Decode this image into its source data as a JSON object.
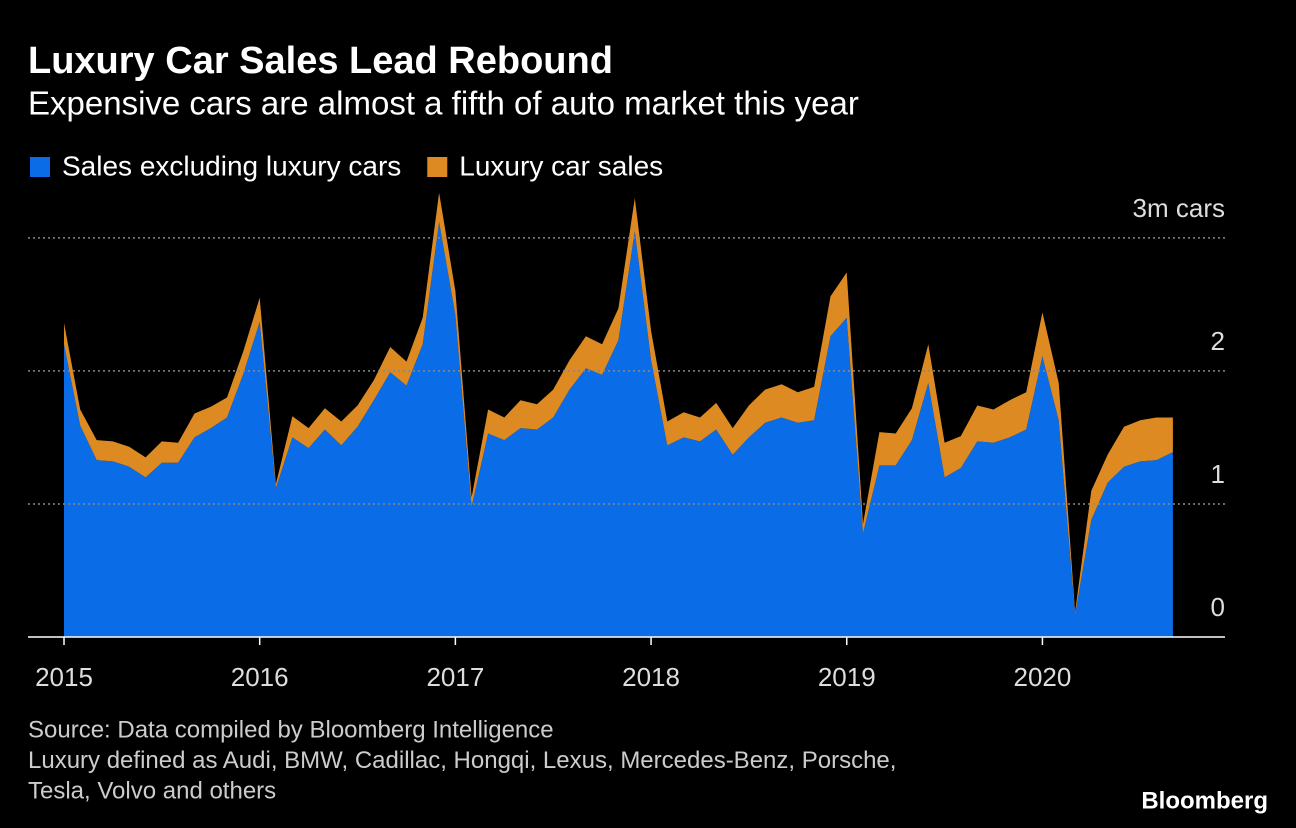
{
  "chart_data": {
    "type": "stacked_area",
    "title": "Luxury Car Sales Lead Rebound",
    "subtitle": "Expensive cars are almost a fifth of auto market this year",
    "x": [
      2015,
      2015.083,
      2015.167,
      2015.25,
      2015.333,
      2015.417,
      2015.5,
      2015.583,
      2015.667,
      2015.75,
      2015.833,
      2015.917,
      2016,
      2016.083,
      2016.167,
      2016.25,
      2016.333,
      2016.417,
      2016.5,
      2016.583,
      2016.667,
      2016.75,
      2016.833,
      2016.917,
      2017,
      2017.083,
      2017.167,
      2017.25,
      2017.333,
      2017.417,
      2017.5,
      2017.583,
      2017.667,
      2017.75,
      2017.833,
      2017.917,
      2018,
      2018.083,
      2018.167,
      2018.25,
      2018.333,
      2018.417,
      2018.5,
      2018.583,
      2018.667,
      2018.75,
      2018.833,
      2018.917,
      2019,
      2019.083,
      2019.167,
      2019.25,
      2019.333,
      2019.417,
      2019.5,
      2019.583,
      2019.667,
      2019.75,
      2019.833,
      2019.917,
      2020,
      2020.083,
      2020.167,
      2020.25,
      2020.333,
      2020.417,
      2020.5,
      2020.583,
      2020.667
    ],
    "series": [
      {
        "name": "Sales excluding luxury cars",
        "color": "#0a6ce6",
        "values": [
          2.2,
          1.59,
          1.33,
          1.32,
          1.28,
          1.2,
          1.31,
          1.31,
          1.5,
          1.57,
          1.65,
          1.98,
          2.37,
          1.12,
          1.5,
          1.42,
          1.56,
          1.44,
          1.58,
          1.78,
          1.99,
          1.89,
          2.2,
          3.12,
          2.42,
          0.98,
          1.53,
          1.48,
          1.57,
          1.56,
          1.65,
          1.86,
          2.02,
          1.97,
          2.23,
          3.05,
          2.08,
          1.44,
          1.5,
          1.47,
          1.56,
          1.37,
          1.5,
          1.61,
          1.65,
          1.61,
          1.63,
          2.26,
          2.4,
          0.78,
          1.29,
          1.29,
          1.48,
          1.91,
          1.2,
          1.27,
          1.47,
          1.46,
          1.5,
          1.56,
          2.11,
          1.63,
          0.17,
          0.88,
          1.16,
          1.28,
          1.32,
          1.33,
          1.39
        ]
      },
      {
        "name": "Luxury car sales",
        "color": "#de8a22",
        "values": [
          0.16,
          0.12,
          0.15,
          0.15,
          0.15,
          0.15,
          0.16,
          0.15,
          0.18,
          0.16,
          0.15,
          0.17,
          0.18,
          0.03,
          0.16,
          0.15,
          0.16,
          0.18,
          0.16,
          0.15,
          0.19,
          0.18,
          0.2,
          0.22,
          0.18,
          0.07,
          0.18,
          0.17,
          0.21,
          0.19,
          0.21,
          0.22,
          0.24,
          0.23,
          0.24,
          0.25,
          0.22,
          0.18,
          0.19,
          0.18,
          0.2,
          0.2,
          0.24,
          0.25,
          0.25,
          0.23,
          0.25,
          0.3,
          0.34,
          0.07,
          0.25,
          0.24,
          0.24,
          0.29,
          0.26,
          0.24,
          0.27,
          0.25,
          0.28,
          0.28,
          0.33,
          0.28,
          0.02,
          0.22,
          0.21,
          0.3,
          0.31,
          0.32,
          0.26
        ]
      }
    ],
    "xlim": [
      2014.816,
      2020.933
    ],
    "xticks": [
      2015,
      2016,
      2017,
      2018,
      2019,
      2020
    ],
    "ylim": [
      0,
      3.36
    ],
    "yticks": [
      0,
      1,
      2,
      {
        "value": 3,
        "label": "3m cars"
      }
    ],
    "grid": true,
    "legend": "top-left",
    "notes": [
      "Source: Data compiled by Bloomberg Intelligence",
      "Luxury defined as Audi, BMW, Cadillac, Hongqi, Lexus, Mercedes-Benz, Porsche,",
      "Tesla, Volvo and others"
    ],
    "brand": "Bloomberg"
  }
}
